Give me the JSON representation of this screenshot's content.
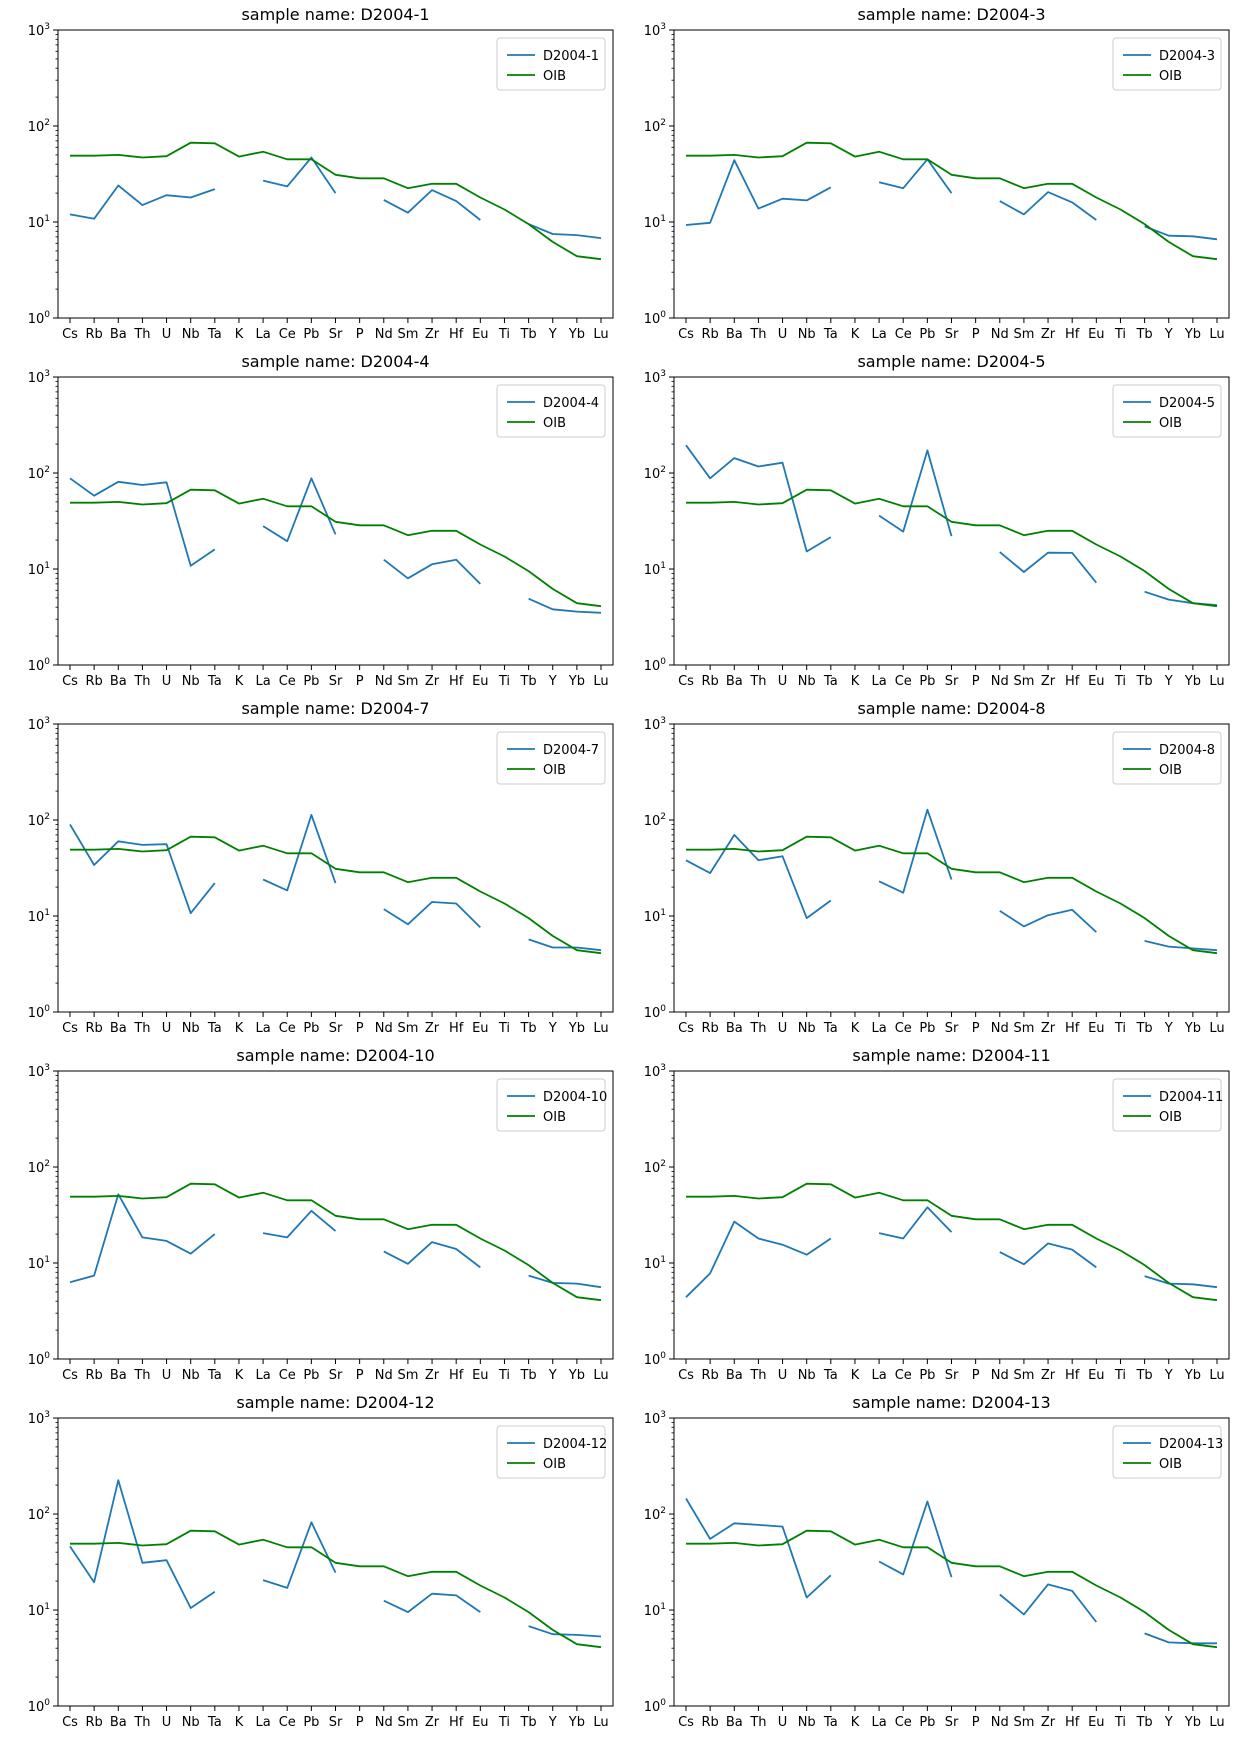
{
  "categories": [
    "Cs",
    "Rb",
    "Ba",
    "Th",
    "U",
    "Nb",
    "Ta",
    "K",
    "La",
    "Ce",
    "Pb",
    "Sr",
    "P",
    "Nd",
    "Sm",
    "Zr",
    "Hf",
    "Eu",
    "Ti",
    "Tb",
    "Y",
    "Yb",
    "Lu"
  ],
  "colors": {
    "sample": "#1f77b4",
    "oib": "#008000"
  },
  "chart_data": [
    {
      "type": "line",
      "title": "sample name: D2004-1",
      "yscale": "log",
      "ylim": [
        1,
        1000
      ],
      "yticks": [
        "10^0",
        "10^1",
        "10^2",
        "10^3"
      ],
      "legend": "top-right",
      "series": [
        {
          "name": "D2004-1",
          "values": [
            12,
            10.8,
            24,
            15,
            19,
            18,
            22,
            null,
            27,
            23.5,
            47,
            20,
            null,
            17,
            12.5,
            21.5,
            16.5,
            10.5,
            null,
            9.5,
            7.5,
            7.3,
            6.8
          ]
        },
        {
          "name": "OIB",
          "values": [
            49,
            49,
            50,
            47,
            48.5,
            67,
            66,
            48,
            54,
            45,
            45,
            31,
            28.5,
            28.5,
            22.5,
            25,
            25,
            18,
            13.5,
            9.5,
            6.2,
            4.4,
            4.1
          ]
        }
      ]
    },
    {
      "type": "line",
      "title": "sample name: D2004-3",
      "yscale": "log",
      "ylim": [
        1,
        1000
      ],
      "yticks": [
        "10^0",
        "10^1",
        "10^2",
        "10^3"
      ],
      "legend": "top-right",
      "series": [
        {
          "name": "D2004-3",
          "values": [
            9.3,
            9.8,
            44,
            13.8,
            17.5,
            16.8,
            23,
            null,
            26,
            22.5,
            45,
            20,
            null,
            16.5,
            12,
            20.5,
            16,
            10.5,
            null,
            9,
            7.2,
            7.1,
            6.6
          ]
        },
        {
          "name": "OIB",
          "values": [
            49,
            49,
            50,
            47,
            48.5,
            67,
            66,
            48,
            54,
            45,
            45,
            31,
            28.5,
            28.5,
            22.5,
            25,
            25,
            18,
            13.5,
            9.5,
            6.2,
            4.4,
            4.1
          ]
        }
      ]
    },
    {
      "type": "line",
      "title": "sample name: D2004-4",
      "yscale": "log",
      "ylim": [
        1,
        1000
      ],
      "yticks": [
        "10^0",
        "10^1",
        "10^2",
        "10^3"
      ],
      "legend": "top-right",
      "series": [
        {
          "name": "D2004-4",
          "values": [
            88,
            58,
            81,
            75,
            80,
            10.8,
            16,
            null,
            28,
            19.5,
            88,
            23,
            null,
            12.5,
            8,
            11.2,
            12.5,
            7,
            null,
            4.9,
            3.8,
            3.6,
            3.5
          ]
        },
        {
          "name": "OIB",
          "values": [
            49,
            49,
            50,
            47,
            48.5,
            67,
            66,
            48,
            54,
            45,
            45,
            31,
            28.5,
            28.5,
            22.5,
            25,
            25,
            18,
            13.5,
            9.5,
            6.2,
            4.4,
            4.1
          ]
        }
      ]
    },
    {
      "type": "line",
      "title": "sample name: D2004-5",
      "yscale": "log",
      "ylim": [
        1,
        1000
      ],
      "yticks": [
        "10^0",
        "10^1",
        "10^2",
        "10^3"
      ],
      "legend": "top-right",
      "series": [
        {
          "name": "D2004-5",
          "values": [
            195,
            88,
            143,
            117,
            128,
            15.2,
            21.5,
            null,
            36,
            24.5,
            172,
            22,
            null,
            15,
            9.3,
            14.8,
            14.7,
            7.2,
            null,
            5.8,
            4.8,
            4.4,
            4.2
          ]
        },
        {
          "name": "OIB",
          "values": [
            49,
            49,
            50,
            47,
            48.5,
            67,
            66,
            48,
            54,
            45,
            45,
            31,
            28.5,
            28.5,
            22.5,
            25,
            25,
            18,
            13.5,
            9.5,
            6.2,
            4.4,
            4.1
          ]
        }
      ]
    },
    {
      "type": "line",
      "title": "sample name: D2004-7",
      "yscale": "log",
      "ylim": [
        1,
        1000
      ],
      "yticks": [
        "10^0",
        "10^1",
        "10^2",
        "10^3"
      ],
      "legend": "top-right",
      "series": [
        {
          "name": "D2004-7",
          "values": [
            90,
            34,
            60,
            55,
            56,
            10.7,
            22,
            null,
            24,
            18.5,
            113,
            22,
            null,
            11.8,
            8.2,
            14,
            13.5,
            7.6,
            null,
            5.7,
            4.7,
            4.7,
            4.4
          ]
        },
        {
          "name": "OIB",
          "values": [
            49,
            49,
            50,
            47,
            48.5,
            67,
            66,
            48,
            54,
            45,
            45,
            31,
            28.5,
            28.5,
            22.5,
            25,
            25,
            18,
            13.5,
            9.5,
            6.2,
            4.4,
            4.1
          ]
        }
      ]
    },
    {
      "type": "line",
      "title": "sample name: D2004-8",
      "yscale": "log",
      "ylim": [
        1,
        1000
      ],
      "yticks": [
        "10^0",
        "10^1",
        "10^2",
        "10^3"
      ],
      "legend": "top-right",
      "series": [
        {
          "name": "D2004-8",
          "values": [
            38,
            28,
            70,
            38,
            42,
            9.5,
            14.5,
            null,
            23,
            17.5,
            128,
            24,
            null,
            11.3,
            7.8,
            10.2,
            11.6,
            6.8,
            null,
            5.5,
            4.8,
            4.6,
            4.4
          ]
        },
        {
          "name": "OIB",
          "values": [
            49,
            49,
            50,
            47,
            48.5,
            67,
            66,
            48,
            54,
            45,
            45,
            31,
            28.5,
            28.5,
            22.5,
            25,
            25,
            18,
            13.5,
            9.5,
            6.2,
            4.4,
            4.1
          ]
        }
      ]
    },
    {
      "type": "line",
      "title": "sample name: D2004-10",
      "yscale": "log",
      "ylim": [
        1,
        1000
      ],
      "yticks": [
        "10^0",
        "10^1",
        "10^2",
        "10^3"
      ],
      "legend": "top-right",
      "series": [
        {
          "name": "D2004-10",
          "values": [
            6.3,
            7.4,
            52,
            18.5,
            17,
            12.5,
            20,
            null,
            20.5,
            18.5,
            35,
            21.5,
            null,
            13.2,
            9.8,
            16.5,
            14,
            9,
            null,
            7.4,
            6.2,
            6.1,
            5.6
          ]
        },
        {
          "name": "OIB",
          "values": [
            49,
            49,
            50,
            47,
            48.5,
            67,
            66,
            48,
            54,
            45,
            45,
            31,
            28.5,
            28.5,
            22.5,
            25,
            25,
            18,
            13.5,
            9.5,
            6.2,
            4.4,
            4.1
          ]
        }
      ]
    },
    {
      "type": "line",
      "title": "sample name: D2004-11",
      "yscale": "log",
      "ylim": [
        1,
        1000
      ],
      "yticks": [
        "10^0",
        "10^1",
        "10^2",
        "10^3"
      ],
      "legend": "top-right",
      "series": [
        {
          "name": "D2004-11",
          "values": [
            4.4,
            7.8,
            27,
            18,
            15.5,
            12.2,
            18,
            null,
            20.5,
            18,
            38,
            21,
            null,
            13,
            9.7,
            16,
            13.8,
            9,
            null,
            7.3,
            6.1,
            6,
            5.6
          ]
        },
        {
          "name": "OIB",
          "values": [
            49,
            49,
            50,
            47,
            48.5,
            67,
            66,
            48,
            54,
            45,
            45,
            31,
            28.5,
            28.5,
            22.5,
            25,
            25,
            18,
            13.5,
            9.5,
            6.2,
            4.4,
            4.1
          ]
        }
      ]
    },
    {
      "type": "line",
      "title": "sample name: D2004-12",
      "yscale": "log",
      "ylim": [
        1,
        1000
      ],
      "yticks": [
        "10^0",
        "10^1",
        "10^2",
        "10^3"
      ],
      "legend": "top-right",
      "series": [
        {
          "name": "D2004-12",
          "values": [
            46,
            19.5,
            225,
            31,
            33,
            10.5,
            15.5,
            null,
            20.5,
            17,
            82,
            24.5,
            null,
            12.5,
            9.5,
            14.8,
            14.2,
            9.5,
            null,
            6.8,
            5.6,
            5.5,
            5.3
          ]
        },
        {
          "name": "OIB",
          "values": [
            49,
            49,
            50,
            47,
            48.5,
            67,
            66,
            48,
            54,
            45,
            45,
            31,
            28.5,
            28.5,
            22.5,
            25,
            25,
            18,
            13.5,
            9.5,
            6.2,
            4.4,
            4.1
          ]
        }
      ]
    },
    {
      "type": "line",
      "title": "sample name: D2004-13",
      "yscale": "log",
      "ylim": [
        1,
        1000
      ],
      "yticks": [
        "10^0",
        "10^1",
        "10^2",
        "10^3"
      ],
      "legend": "top-right",
      "series": [
        {
          "name": "D2004-13",
          "values": [
            145,
            55,
            80,
            77,
            74,
            13.5,
            23,
            null,
            32,
            23.5,
            135,
            22,
            null,
            14.5,
            9,
            18.5,
            15.8,
            7.5,
            null,
            5.7,
            4.6,
            4.5,
            4.5
          ]
        },
        {
          "name": "OIB",
          "values": [
            49,
            49,
            50,
            47,
            48.5,
            67,
            66,
            48,
            54,
            45,
            45,
            31,
            28.5,
            28.5,
            22.5,
            25,
            25,
            18,
            13.5,
            9.5,
            6.2,
            4.4,
            4.1
          ]
        }
      ]
    }
  ]
}
